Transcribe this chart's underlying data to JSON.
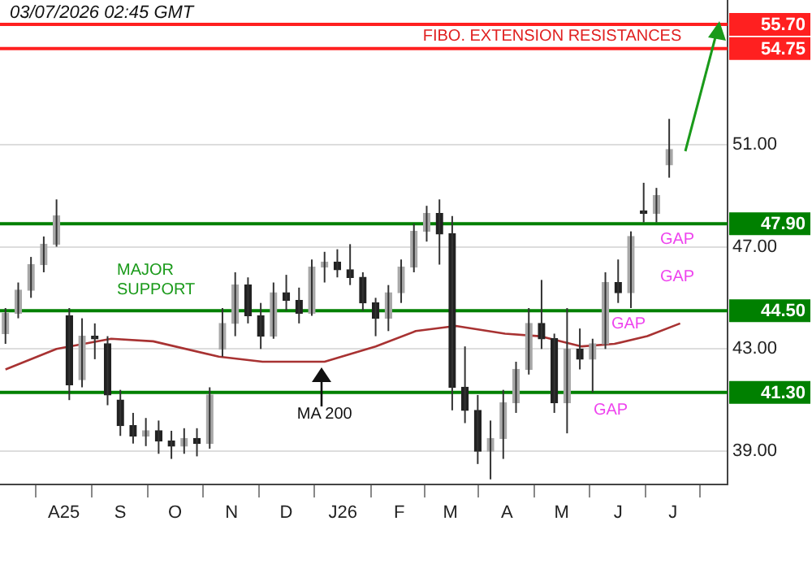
{
  "chart_data": {
    "type": "candlestick",
    "x": [
      "2025-06-30",
      "2025-07-07",
      "2025-07-14",
      "2025-07-21",
      "2025-07-28",
      "2025-08-04",
      "2025-08-11",
      "2025-08-18",
      "2025-08-25",
      "2025-09-01",
      "2025-09-08",
      "2025-09-15",
      "2025-09-22",
      "2025-09-29",
      "2025-10-06",
      "2025-10-13",
      "2025-10-20",
      "2025-10-27",
      "2025-11-03",
      "2025-11-10",
      "2025-11-17",
      "2025-11-24",
      "2025-12-01",
      "2025-12-08",
      "2025-12-15",
      "2025-12-22",
      "2025-12-29",
      "2026-01-05",
      "2026-01-12",
      "2026-01-19",
      "2026-01-26",
      "2026-02-02",
      "2026-02-09",
      "2026-02-16",
      "2026-02-23",
      "2026-03-02",
      "2026-03-09",
      "2026-03-16",
      "2026-03-23",
      "2026-03-30",
      "2026-04-06",
      "2026-04-13",
      "2026-04-20",
      "2026-04-27",
      "2026-05-04",
      "2026-05-11",
      "2026-05-18",
      "2026-05-25",
      "2026-06-01",
      "2026-06-08",
      "2026-06-15",
      "2026-06-22",
      "2026-06-29"
    ],
    "ohlc": [
      [
        43.6,
        44.6,
        43.2,
        44.4
      ],
      [
        44.4,
        45.6,
        44.2,
        45.3
      ],
      [
        45.3,
        46.6,
        45.0,
        46.3
      ],
      [
        46.3,
        47.4,
        46.0,
        47.1
      ],
      [
        47.1,
        48.85,
        47.0,
        48.2
      ],
      [
        44.3,
        44.6,
        41.0,
        41.6
      ],
      [
        41.8,
        44.2,
        41.5,
        43.5
      ],
      [
        43.5,
        44.0,
        42.6,
        43.4
      ],
      [
        43.2,
        43.5,
        40.8,
        41.2
      ],
      [
        41.0,
        41.4,
        39.6,
        40.0
      ],
      [
        40.0,
        40.5,
        39.3,
        39.6
      ],
      [
        39.6,
        40.3,
        39.2,
        39.8
      ],
      [
        39.8,
        40.2,
        38.9,
        39.4
      ],
      [
        39.4,
        39.8,
        38.7,
        39.2
      ],
      [
        39.2,
        39.9,
        38.9,
        39.5
      ],
      [
        39.5,
        39.9,
        38.8,
        39.3
      ],
      [
        39.3,
        41.5,
        39.1,
        41.2
      ],
      [
        43.0,
        44.6,
        42.7,
        44.0
      ],
      [
        44.0,
        46.0,
        43.5,
        45.5
      ],
      [
        45.5,
        45.8,
        44.0,
        44.3
      ],
      [
        44.3,
        44.8,
        43.0,
        43.5
      ],
      [
        43.5,
        45.6,
        43.4,
        45.2
      ],
      [
        45.2,
        45.9,
        44.5,
        44.9
      ],
      [
        44.9,
        45.4,
        44.0,
        44.4
      ],
      [
        44.4,
        46.5,
        44.3,
        46.2
      ],
      [
        46.2,
        46.8,
        45.6,
        46.4
      ],
      [
        46.4,
        46.9,
        45.8,
        46.1
      ],
      [
        46.1,
        47.1,
        45.5,
        45.8
      ],
      [
        45.8,
        46.0,
        44.5,
        44.8
      ],
      [
        44.8,
        45.0,
        43.5,
        44.2
      ],
      [
        44.2,
        45.5,
        43.7,
        45.2
      ],
      [
        45.2,
        46.5,
        44.8,
        46.2
      ],
      [
        46.2,
        47.9,
        46.0,
        47.6
      ],
      [
        47.6,
        48.6,
        47.2,
        48.3
      ],
      [
        48.3,
        48.85,
        46.3,
        47.5
      ],
      [
        47.5,
        48.2,
        40.6,
        41.5
      ],
      [
        41.5,
        43.1,
        40.1,
        40.6
      ],
      [
        40.6,
        41.2,
        38.5,
        39.0
      ],
      [
        39.0,
        40.2,
        37.9,
        39.5
      ],
      [
        39.5,
        41.4,
        38.7,
        40.9
      ],
      [
        40.9,
        42.5,
        40.5,
        42.2
      ],
      [
        42.2,
        44.6,
        42.0,
        44.0
      ],
      [
        44.0,
        45.7,
        43.0,
        43.4
      ],
      [
        43.4,
        43.6,
        40.5,
        40.9
      ],
      [
        40.9,
        44.6,
        39.7,
        43.0
      ],
      [
        43.0,
        43.8,
        42.2,
        42.6
      ],
      [
        42.6,
        43.4,
        41.3,
        43.2
      ],
      [
        43.2,
        46.0,
        43.0,
        45.6
      ],
      [
        45.6,
        46.5,
        44.8,
        45.2
      ],
      [
        45.2,
        47.6,
        44.6,
        47.4
      ],
      [
        48.4,
        49.5,
        47.95,
        48.3
      ],
      [
        48.3,
        49.3,
        47.95,
        49.0
      ],
      [
        50.2,
        52.0,
        49.7,
        50.8
      ]
    ],
    "series": [
      {
        "type": "line",
        "color": "#a83232",
        "x": [
          "2025-06-30",
          "2025-07-28",
          "2025-08-27",
          "2025-09-19",
          "2025-10-25",
          "2025-11-18",
          "2025-12-22",
          "2026-01-19",
          "2026-02-10",
          "2026-03-04",
          "2026-03-31",
          "2026-04-19",
          "2026-05-12",
          "2026-05-30",
          "2026-06-17",
          "2026-07-05"
        ],
        "values": [
          42.2,
          43.0,
          43.4,
          43.3,
          42.7,
          42.5,
          42.5,
          43.1,
          43.7,
          43.9,
          43.6,
          43.5,
          43.1,
          43.2,
          43.5,
          44.0
        ]
      }
    ],
    "xlim": [
      "2025-06-27",
      "2026-07-31"
    ],
    "xticks": [
      {
        "value": "2025-08-01",
        "label": "A25"
      },
      {
        "value": "2025-09-01",
        "label": "S"
      },
      {
        "value": "2025-10-01",
        "label": "O"
      },
      {
        "value": "2025-11-01",
        "label": "N"
      },
      {
        "value": "2025-12-01",
        "label": "D"
      },
      {
        "value": "2026-01-01",
        "label": "J26"
      },
      {
        "value": "2026-02-01",
        "label": "F"
      },
      {
        "value": "2026-03-01",
        "label": "M"
      },
      {
        "value": "2026-04-01",
        "label": "A"
      },
      {
        "value": "2026-05-01",
        "label": "M"
      },
      {
        "value": "2026-06-01",
        "label": "J"
      },
      {
        "value": "2026-07-01",
        "label": "J"
      }
    ],
    "ylim": [
      37.7,
      56.65
    ],
    "yticks": [
      {
        "value": 39,
        "label": "39.00"
      },
      {
        "value": 43,
        "label": "43.00"
      },
      {
        "value": 47,
        "label": "47.00"
      },
      {
        "value": 51,
        "label": "51.00"
      }
    ],
    "grid": "y",
    "ref_lines": [
      {
        "axis": "y",
        "value": 55.7,
        "label": "55.70",
        "color": "#ff2020"
      },
      {
        "axis": "y",
        "value": 54.75,
        "label": "54.75",
        "color": "#ff2020"
      },
      {
        "axis": "y",
        "value": 47.9,
        "label": "47.90",
        "color": "#008000"
      },
      {
        "axis": "y",
        "value": 44.5,
        "label": "44.50",
        "color": "#008000"
      },
      {
        "axis": "y",
        "value": 41.3,
        "label": "41.30",
        "color": "#008000"
      }
    ],
    "annotations": [
      "03/07/2026 02:45 GMT",
      "FIBO. EXTENSION RESISTANCES",
      "MAJOR SUPPORT",
      {
        "text": "MA 200",
        "x": "2025-12-22",
        "y": 42.5
      },
      "GAP",
      "GAP",
      "GAP",
      "GAP"
    ]
  }
}
